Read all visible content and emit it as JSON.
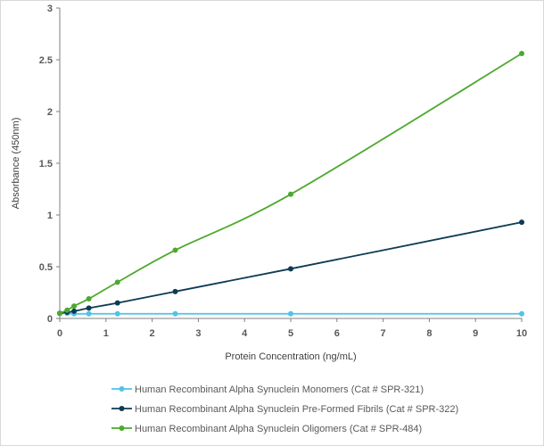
{
  "chart_data": {
    "type": "line",
    "title": "",
    "xlabel": "Protein Concentration (ng/mL)",
    "ylabel": "Absorbance (450nm)",
    "xlim": [
      0,
      10
    ],
    "ylim": [
      0,
      3
    ],
    "x_ticks": [
      "0",
      "1",
      "2",
      "3",
      "4",
      "5",
      "6",
      "7",
      "8",
      "9",
      "10"
    ],
    "y_ticks": [
      "0",
      "0.5",
      "1",
      "1.5",
      "2",
      "2.5",
      "3"
    ],
    "grid": false,
    "legend_position": "bottom",
    "series": [
      {
        "name": "Human Recombinant Alpha Synuclein Monomers (Cat # SPR-321)",
        "color": "#4fc3ea",
        "x": [
          0,
          0.16,
          0.31,
          0.63,
          1.25,
          2.5,
          5,
          10
        ],
        "y": [
          0.05,
          0.05,
          0.045,
          0.045,
          0.045,
          0.045,
          0.045,
          0.045
        ]
      },
      {
        "name": "Human Recombinant Alpha Synuclein Pre-Formed Fibrils (Cat # SPR-322)",
        "color": "#0d3b54",
        "x": [
          0,
          0.16,
          0.31,
          0.63,
          1.25,
          2.5,
          5,
          10
        ],
        "y": [
          0.05,
          0.06,
          0.07,
          0.1,
          0.15,
          0.26,
          0.48,
          0.93
        ]
      },
      {
        "name": "Human Recombinant Alpha Synuclein Oligomers (Cat # SPR-484)",
        "color": "#4ca92e",
        "x": [
          0,
          0.16,
          0.31,
          0.63,
          1.25,
          2.5,
          5,
          10
        ],
        "y": [
          0.05,
          0.08,
          0.12,
          0.19,
          0.35,
          0.66,
          1.2,
          2.56
        ]
      }
    ]
  }
}
